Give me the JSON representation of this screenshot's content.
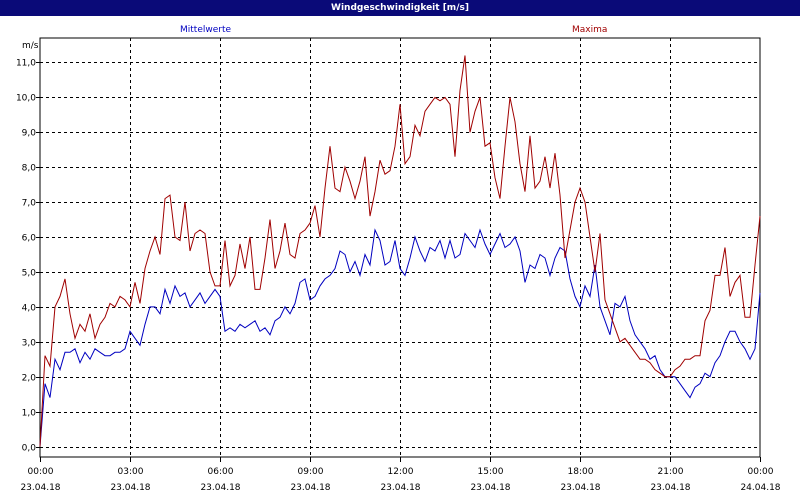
{
  "window": {
    "title": "Windgeschwindigkeit [m/s]"
  },
  "chart_data": {
    "type": "line",
    "title": "Windgeschwindigkeit [m/s]",
    "ylabel": "m/s",
    "ylim": [
      -0.3,
      11.7
    ],
    "xlim": [
      "23.04.18 00:00",
      "24.04.18 00:00"
    ],
    "grid": true,
    "legend": "top",
    "x_ticks": [
      {
        "time": "00:00",
        "date": "23.04.18"
      },
      {
        "time": "03:00",
        "date": "23.04.18"
      },
      {
        "time": "06:00",
        "date": "23.04.18"
      },
      {
        "time": "09:00",
        "date": "23.04.18"
      },
      {
        "time": "12:00",
        "date": "23.04.18"
      },
      {
        "time": "15:00",
        "date": "23.04.18"
      },
      {
        "time": "18:00",
        "date": "23.04.18"
      },
      {
        "time": "21:00",
        "date": "23.04.18"
      },
      {
        "time": "00:00",
        "date": "24.04.18"
      }
    ],
    "y_ticks": [
      "0,0",
      "1,0",
      "2,0",
      "3,0",
      "4,0",
      "5,0",
      "6,0",
      "7,0",
      "8,0",
      "9,0",
      "10,0",
      "11,0"
    ],
    "x": [
      "00:00",
      "00:10",
      "00:20",
      "00:30",
      "00:40",
      "00:50",
      "01:00",
      "01:10",
      "01:20",
      "01:30",
      "01:40",
      "01:50",
      "02:00",
      "02:10",
      "02:20",
      "02:30",
      "02:40",
      "02:50",
      "03:00",
      "03:10",
      "03:20",
      "03:30",
      "03:40",
      "03:50",
      "04:00",
      "04:10",
      "04:20",
      "04:30",
      "04:40",
      "04:50",
      "05:00",
      "05:10",
      "05:20",
      "05:30",
      "05:40",
      "05:50",
      "06:00",
      "06:10",
      "06:20",
      "06:30",
      "06:40",
      "06:50",
      "07:00",
      "07:10",
      "07:20",
      "07:30",
      "07:40",
      "07:50",
      "08:00",
      "08:10",
      "08:20",
      "08:30",
      "08:40",
      "08:50",
      "09:00",
      "09:10",
      "09:20",
      "09:30",
      "09:40",
      "09:50",
      "10:00",
      "10:10",
      "10:20",
      "10:30",
      "10:40",
      "10:50",
      "11:00",
      "11:10",
      "11:20",
      "11:30",
      "11:40",
      "11:50",
      "12:00",
      "12:10",
      "12:20",
      "12:30",
      "12:40",
      "12:50",
      "13:00",
      "13:10",
      "13:20",
      "13:30",
      "13:40",
      "13:50",
      "14:00",
      "14:10",
      "14:20",
      "14:30",
      "14:40",
      "14:50",
      "15:00",
      "15:10",
      "15:20",
      "15:30",
      "15:40",
      "15:50",
      "16:00",
      "16:10",
      "16:20",
      "16:30",
      "16:40",
      "16:50",
      "17:00",
      "17:10",
      "17:20",
      "17:30",
      "17:40",
      "17:50",
      "18:00",
      "18:10",
      "18:20",
      "18:30",
      "18:40",
      "18:50",
      "19:00",
      "19:10",
      "19:20",
      "19:30",
      "19:40",
      "19:50",
      "20:00",
      "20:10",
      "20:20",
      "20:30",
      "20:40",
      "20:50",
      "21:00",
      "21:10",
      "21:20",
      "21:30",
      "21:40",
      "21:50",
      "22:00",
      "22:10",
      "22:20",
      "22:30",
      "22:40",
      "22:50",
      "23:00",
      "23:10",
      "23:20",
      "23:30",
      "23:40",
      "23:50",
      "00:00"
    ],
    "series": [
      {
        "name": "Mittelwerte",
        "color": "#0000c0",
        "values": [
          0.0,
          1.8,
          1.4,
          2.5,
          2.2,
          2.7,
          2.7,
          2.8,
          2.4,
          2.7,
          2.5,
          2.8,
          2.7,
          2.6,
          2.6,
          2.7,
          2.7,
          2.8,
          3.3,
          3.1,
          2.9,
          3.5,
          4.0,
          4.0,
          3.8,
          4.5,
          4.1,
          4.6,
          4.3,
          4.4,
          4.0,
          4.2,
          4.4,
          4.1,
          4.3,
          4.5,
          4.3,
          3.3,
          3.4,
          3.3,
          3.5,
          3.4,
          3.5,
          3.6,
          3.3,
          3.4,
          3.2,
          3.6,
          3.7,
          4.0,
          3.8,
          4.1,
          4.7,
          4.8,
          4.2,
          4.3,
          4.6,
          4.8,
          4.9,
          5.1,
          5.6,
          5.5,
          5.0,
          5.3,
          4.9,
          5.5,
          5.2,
          6.2,
          5.9,
          5.2,
          5.3,
          5.9,
          5.1,
          4.9,
          5.4,
          6.0,
          5.6,
          5.3,
          5.7,
          5.6,
          5.9,
          5.4,
          5.9,
          5.4,
          5.5,
          6.1,
          5.9,
          5.7,
          6.2,
          5.8,
          5.5,
          5.8,
          6.1,
          5.7,
          5.8,
          6.0,
          5.6,
          4.7,
          5.2,
          5.1,
          5.5,
          5.4,
          4.9,
          5.4,
          5.7,
          5.6,
          4.8,
          4.3,
          4.0,
          4.6,
          4.3,
          5.2,
          4.0,
          3.6,
          3.2,
          4.1,
          4.0,
          4.3,
          3.6,
          3.2,
          3.0,
          2.8,
          2.5,
          2.6,
          2.2,
          2.0,
          2.0,
          2.0,
          1.8,
          1.6,
          1.4,
          1.7,
          1.8,
          2.1,
          2.0,
          2.4,
          2.6,
          3.0,
          3.3,
          3.3,
          3.0,
          2.8,
          2.5,
          2.8,
          4.4
        ]
      },
      {
        "name": "Maxima",
        "color": "#a00000",
        "values": [
          0.0,
          2.6,
          2.3,
          4.0,
          4.3,
          4.8,
          3.8,
          3.1,
          3.5,
          3.3,
          3.8,
          3.1,
          3.5,
          3.7,
          4.1,
          4.0,
          4.3,
          4.2,
          4.0,
          4.7,
          4.1,
          5.1,
          5.6,
          6.0,
          5.5,
          7.1,
          7.2,
          6.0,
          5.9,
          7.0,
          5.6,
          6.1,
          6.2,
          6.1,
          5.0,
          4.6,
          4.6,
          5.9,
          4.6,
          4.9,
          5.8,
          5.1,
          6.0,
          4.5,
          4.5,
          5.4,
          6.5,
          5.1,
          5.6,
          6.4,
          5.5,
          5.4,
          6.1,
          6.2,
          6.4,
          6.9,
          6.0,
          7.4,
          8.6,
          7.4,
          7.3,
          8.0,
          7.6,
          7.1,
          7.6,
          8.3,
          6.6,
          7.3,
          8.2,
          7.8,
          7.9,
          8.6,
          9.8,
          8.1,
          8.3,
          9.2,
          8.9,
          9.6,
          9.8,
          10.0,
          9.9,
          10.0,
          9.8,
          8.3,
          10.2,
          11.2,
          9.0,
          9.6,
          10.0,
          8.6,
          8.7,
          7.7,
          7.1,
          8.6,
          10.0,
          9.3,
          8.1,
          7.3,
          8.9,
          7.4,
          7.6,
          8.3,
          7.4,
          8.4,
          7.2,
          5.4,
          6.2,
          7.0,
          7.4,
          7.0,
          6.0,
          5.0,
          6.1,
          4.2,
          3.8,
          3.4,
          3.0,
          3.1,
          2.9,
          2.7,
          2.5,
          2.5,
          2.4,
          2.2,
          2.1,
          2.0,
          2.0,
          2.2,
          2.3,
          2.5,
          2.5,
          2.6,
          2.6,
          3.6,
          3.9,
          4.9,
          4.9,
          5.7,
          4.3,
          4.7,
          4.9,
          3.7,
          3.7,
          5.2,
          6.6
        ]
      }
    ]
  }
}
